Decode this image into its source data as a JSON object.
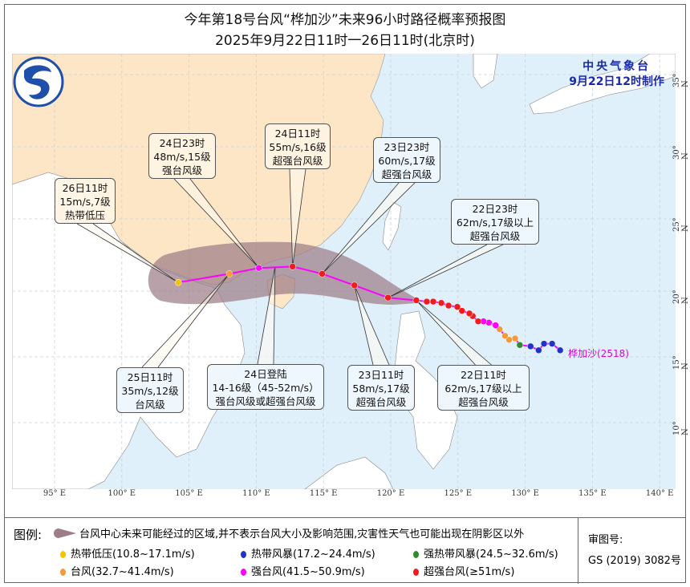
{
  "title": {
    "line1": "今年第18号台风“桦加沙”未来96小时路径概率预报图",
    "line2": "2025年9月22日11时一26日11时(北京时)"
  },
  "issuer": {
    "name": "中央气象台",
    "made": "9月22日12时制作"
  },
  "storm_label": "桦加沙(2518)",
  "colors": {
    "ocean": "#dff0fb",
    "china_land": "#fde6c6",
    "foreign_land": "#ffffff",
    "cone": "#9c7d88",
    "track": "#ff00ff",
    "tropical_depression": "#f5c400",
    "tropical_storm": "#2233cc",
    "severe_tropical_storm": "#2e8b2e",
    "typhoon": "#f59a3c",
    "severe_typhoon": "#ff00ff",
    "super_typhoon": "#ee1c1c",
    "title_blue": "#1a2aa8"
  },
  "axes": {
    "lon_labels": [
      "95° E",
      "100° E",
      "105° E",
      "110° E",
      "115° E",
      "120° E",
      "125° E",
      "130° E",
      "135° E",
      "140° E"
    ],
    "lon_values": [
      95,
      100,
      105,
      110,
      115,
      120,
      125,
      130,
      135,
      140
    ],
    "lat_labels": [
      "35° N",
      "30° N",
      "25° N",
      "20° N",
      "15° N",
      "10° N"
    ],
    "lat_values": [
      35,
      30,
      25,
      20,
      15,
      10
    ]
  },
  "forecast_track": [
    {
      "time": "22日11时",
      "lon": 121.9,
      "lat": 19.3,
      "cat": "super_typhoon"
    },
    {
      "time": "22日23时",
      "lon": 119.8,
      "lat": 19.5,
      "cat": "super_typhoon"
    },
    {
      "time": "23日11时",
      "lon": 117.3,
      "lat": 20.4,
      "cat": "super_typhoon"
    },
    {
      "time": "23日23时",
      "lon": 114.9,
      "lat": 21.2,
      "cat": "super_typhoon"
    },
    {
      "time": "24日11时",
      "lon": 112.7,
      "lat": 21.7,
      "cat": "super_typhoon"
    },
    {
      "time": "24日23时",
      "lon": 110.2,
      "lat": 21.6,
      "cat": "severe_typhoon"
    },
    {
      "time": "25日11时",
      "lon": 108.0,
      "lat": 21.2,
      "cat": "typhoon"
    },
    {
      "time": "26日11时",
      "lon": 104.2,
      "lat": 20.6,
      "cat": "tropical_depression"
    }
  ],
  "past_track": [
    {
      "lon": 132.6,
      "lat": 15.5,
      "cat": "tropical_storm"
    },
    {
      "lon": 132.0,
      "lat": 16.0,
      "cat": "tropical_storm"
    },
    {
      "lon": 131.4,
      "lat": 16.0,
      "cat": "tropical_storm"
    },
    {
      "lon": 131.0,
      "lat": 15.5,
      "cat": "tropical_storm"
    },
    {
      "lon": 130.4,
      "lat": 15.8,
      "cat": "tropical_storm"
    },
    {
      "lon": 129.6,
      "lat": 15.9,
      "cat": "severe_tropical_storm"
    },
    {
      "lon": 129.25,
      "lat": 16.4,
      "cat": "typhoon"
    },
    {
      "lon": 128.8,
      "lat": 16.3,
      "cat": "typhoon"
    },
    {
      "lon": 128.5,
      "lat": 16.6,
      "cat": "typhoon"
    },
    {
      "lon": 128.1,
      "lat": 17.1,
      "cat": "typhoon"
    },
    {
      "lon": 127.8,
      "lat": 17.4,
      "cat": "severe_typhoon"
    },
    {
      "lon": 127.3,
      "lat": 17.6,
      "cat": "severe_typhoon"
    },
    {
      "lon": 126.9,
      "lat": 17.7,
      "cat": "severe_typhoon"
    },
    {
      "lon": 126.5,
      "lat": 17.7,
      "cat": "super_typhoon"
    },
    {
      "lon": 126.1,
      "lat": 18.1,
      "cat": "super_typhoon"
    },
    {
      "lon": 125.85,
      "lat": 18.3,
      "cat": "super_typhoon"
    },
    {
      "lon": 125.3,
      "lat": 18.5,
      "cat": "super_typhoon"
    },
    {
      "lon": 124.95,
      "lat": 18.8,
      "cat": "super_typhoon"
    },
    {
      "lon": 124.3,
      "lat": 18.9,
      "cat": "super_typhoon"
    },
    {
      "lon": 123.76,
      "lat": 19.1,
      "cat": "super_typhoon"
    },
    {
      "lon": 123.16,
      "lat": 19.2,
      "cat": "super_typhoon"
    },
    {
      "lon": 122.68,
      "lat": 19.2,
      "cat": "super_typhoon"
    }
  ],
  "landfall": {
    "time": "24日登陆",
    "lon": 111.4,
    "lat": 21.7
  },
  "callouts": [
    {
      "id": "c26-11",
      "lines": [
        "26日11时",
        "15m/s,7级",
        "热带低压"
      ]
    },
    {
      "id": "c24-23",
      "lines": [
        "24日23时",
        "48m/s,15级",
        "强台风级"
      ]
    },
    {
      "id": "c24-11",
      "lines": [
        "24日11时",
        "55m/s,16级",
        "超强台风级"
      ]
    },
    {
      "id": "c23-23",
      "lines": [
        "23日23时",
        "60m/s,17级",
        "超强台风级"
      ]
    },
    {
      "id": "c22-23",
      "lines": [
        "22日23时",
        "62m/s,17级以上",
        "超强台风级"
      ]
    },
    {
      "id": "c25-11",
      "lines": [
        "25日11时",
        "35m/s,12级",
        "台风级"
      ]
    },
    {
      "id": "c24-landfall",
      "lines": [
        "24日登陆",
        "14-16级（45-52m/s）",
        "强台风级或超强台风级"
      ]
    },
    {
      "id": "c23-11",
      "lines": [
        "23日11时",
        "58m/s,17级",
        "超强台风级"
      ]
    },
    {
      "id": "c22-11",
      "lines": [
        "22日11时",
        "62m/s,17级以上",
        "超强台风级"
      ]
    }
  ],
  "legend": {
    "head": "图例:",
    "cone_text": "台风中心未来可能经过的区域,并不表示台风大小及影响范围,灾害性天气也可能出现在阴影区以外",
    "items": [
      {
        "label": "热带低压(10.8~17.1m/s)",
        "cat": "tropical_depression"
      },
      {
        "label": "热带风暴(17.2~24.4m/s)",
        "cat": "tropical_storm"
      },
      {
        "label": "强热带风暴(24.5~32.6m/s)",
        "cat": "severe_tropical_storm"
      },
      {
        "label": "台风(32.7~41.4m/s)",
        "cat": "typhoon"
      },
      {
        "label": "强台风(41.5~50.9m/s)",
        "cat": "severe_typhoon"
      },
      {
        "label": "超强台风(≥51m/s)",
        "cat": "super_typhoon"
      }
    ],
    "review_label": "审图号:",
    "review_no": "GS (2019) 3082号"
  }
}
